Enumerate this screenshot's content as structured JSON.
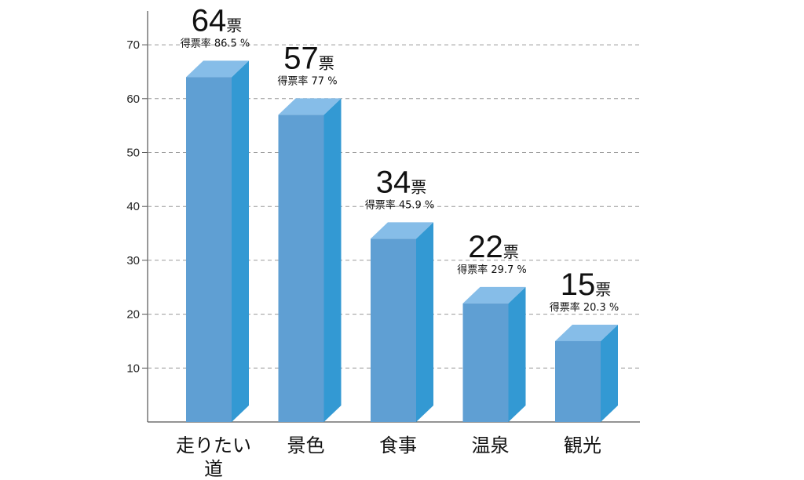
{
  "chart_data": {
    "type": "bar",
    "categories": [
      "走りたい道",
      "景色",
      "食事",
      "温泉",
      "観光"
    ],
    "category_lines": [
      [
        "走りたい",
        "道"
      ],
      [
        "景色"
      ],
      [
        "食事"
      ],
      [
        "温泉"
      ],
      [
        "観光"
      ]
    ],
    "values": [
      64,
      57,
      34,
      22,
      15
    ],
    "vote_labels": [
      "64票",
      "57票",
      "34票",
      "22票",
      "15票"
    ],
    "rates": [
      "86.5",
      "77",
      "45.9",
      "29.7",
      "20.3"
    ],
    "rate_prefix": "得票率",
    "rate_suffix": "%",
    "yticks": [
      10,
      20,
      30,
      40,
      50,
      60,
      70
    ],
    "ylim": [
      0,
      70
    ],
    "grid": true,
    "style": "3d-bar",
    "title": "",
    "xlabel": "",
    "ylabel": ""
  },
  "colors": {
    "bar_front": "#5f9fd3",
    "bar_side": "#3399d3",
    "bar_top": "#86bde8",
    "grid": "#9a9a9a",
    "axis": "#555555"
  }
}
